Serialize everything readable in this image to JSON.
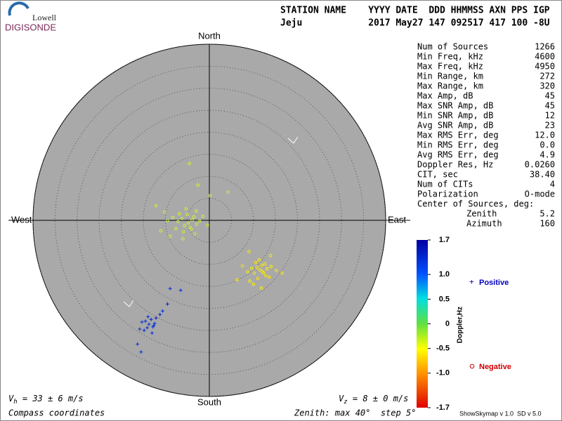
{
  "logo": {
    "top": "Lowell",
    "bottom": "DIGISONDE"
  },
  "header": {
    "row1": "STATION NAME    YYYY DATE  DDD HHMMSS AXN PPS IGP",
    "row2": "Jeju            2017 May27 147 092517 417 100 -8U"
  },
  "stats": {
    "rows": [
      [
        "Num of Sources",
        "1266"
      ],
      [
        "Min Freq, kHz",
        "4600"
      ],
      [
        "Max Freq, kHz",
        "4950"
      ],
      [
        "Min Range, km",
        "272"
      ],
      [
        "Max Range, km",
        "320"
      ],
      [
        "Max Amp, dB",
        "45"
      ],
      [
        "Max SNR Amp, dB",
        "45"
      ],
      [
        "Min SNR Amp, dB",
        "12"
      ],
      [
        "Avg SNR Amp, dB",
        "23"
      ],
      [
        "Max RMS Err, deg",
        "12.0"
      ],
      [
        "Min RMS Err, deg",
        "0.0"
      ],
      [
        "Avg RMS Err, deg",
        "4.9"
      ],
      [
        "Doppler Res, Hz",
        "0.0260"
      ],
      [
        "CIT, sec",
        "38.40"
      ],
      [
        "Num of CITs",
        "4"
      ],
      [
        "Polarization",
        "O-mode"
      ]
    ],
    "center_title": "Center of Sources, deg:",
    "center_rows": [
      [
        "Zenith",
        "5.2"
      ],
      [
        "Azimuth",
        "160"
      ]
    ]
  },
  "skymap": {
    "directions": {
      "north": "North",
      "south": "South",
      "east": "East",
      "west": "West"
    },
    "rlim": [
      0,
      40
    ],
    "rticks": [
      5,
      10,
      15,
      20,
      25,
      30,
      35,
      40
    ],
    "negative": {
      "name": "Negative",
      "x": [
        -4.8,
        -3.9,
        -5.6,
        -6.2,
        -4.1,
        -2.9,
        -5.0,
        -7.1,
        -3.5,
        -4.4,
        -6.8,
        -2.2,
        -8.3,
        -5.9,
        -1.5,
        -9.5,
        -3.0,
        -7.6,
        -0.4,
        -10.2,
        -12.1,
        -6.0,
        0.2,
        4.3,
        -4.5,
        -2.6,
        -8.9,
        -5.3,
        -3.3,
        -11.0,
        11.5,
        10.8,
        12.3,
        11.9,
        10.2,
        13.1,
        12.8,
        9.6,
        11.0,
        14.0,
        10.5,
        12.0,
        8.7,
        13.6,
        11.3,
        15.2,
        9.2,
        12.6,
        7.5,
        10.0,
        16.5,
        6.3,
        9.0,
        11.8,
        13.9
      ],
      "y": [
        -0.6,
        0.1,
        -1.2,
        0.4,
        -2.0,
        -0.9,
        1.3,
        -0.3,
        0.8,
        -1.6,
        1.5,
        -0.2,
        0.6,
        -2.6,
        0.9,
        -0.1,
        2.1,
        -1.9,
        -1.1,
        1.9,
        3.3,
        -4.2,
        5.6,
        6.4,
        12.9,
        8.0,
        -3.6,
        2.6,
        -3.1,
        -2.4,
        -11.3,
        -10.7,
        -11.9,
        -10.2,
        -12.0,
        -11.0,
        -12.6,
        -10.9,
        -13.2,
        -10.5,
        -9.6,
        -11.6,
        -11.7,
        -12.9,
        -9.0,
        -11.4,
        -13.8,
        -9.9,
        -10.4,
        -14.5,
        -12.0,
        -13.5,
        -7.1,
        -15.4,
        -8.0
      ],
      "doppler": [
        -0.2,
        -0.15,
        -0.2,
        -0.1,
        -0.25,
        -0.15,
        -0.2,
        -0.1,
        -0.2,
        -0.15,
        -0.25,
        -0.1,
        -0.2,
        -0.15,
        -0.2,
        -0.1,
        -0.25,
        -0.2,
        -0.15,
        -0.1,
        -0.2,
        -0.15,
        -0.2,
        -0.1,
        -0.2,
        -0.25,
        -0.15,
        -0.2,
        -0.1,
        -0.2,
        -0.55,
        -0.6,
        -0.55,
        -0.6,
        -0.65,
        -0.55,
        -0.6,
        -0.55,
        -0.6,
        -0.55,
        -0.6,
        -0.65,
        -0.55,
        -0.6,
        -0.55,
        -0.6,
        -0.55,
        -0.6,
        -0.65,
        -0.55,
        -0.6,
        -0.55,
        -0.6,
        -0.55,
        -0.6
      ]
    },
    "positive": {
      "name": "Positive",
      "x": [
        -13.7,
        -14.5,
        -12.8,
        -14.1,
        -13.2,
        -15.3,
        -12.4,
        -14.8,
        -13.9,
        -12.1,
        -15.8,
        -13.0,
        -11.2,
        -8.9,
        -9.5,
        -10.6,
        -6.5,
        -16.3,
        -15.5,
        -12.6
      ],
      "y": [
        -23.6,
        -22.9,
        -24.2,
        -24.4,
        -22.5,
        -23.1,
        -23.4,
        -25.0,
        -21.9,
        -22.2,
        -24.7,
        -25.6,
        -21.4,
        -15.5,
        -19.0,
        -20.6,
        -15.9,
        -28.1,
        -29.9,
        -23.9
      ],
      "doppler": [
        1.3,
        1.35,
        1.25,
        1.3,
        1.4,
        1.3,
        1.25,
        1.35,
        1.3,
        1.4,
        1.3,
        1.25,
        1.35,
        1.3,
        1.4,
        1.3,
        1.35,
        1.3,
        1.25,
        1.3
      ]
    }
  },
  "colorbar": {
    "label": "Doppler,Hz",
    "lim": [
      -1.7,
      1.7
    ],
    "ticks": [
      1.7,
      {
        "value": 1,
        "label": "1.0"
      },
      0.5,
      0,
      -0.5,
      {
        "value": -1,
        "label": "-1.0"
      },
      -1.7
    ]
  },
  "footer": {
    "vh_symbol": "V",
    "vh_sub": "h",
    "vh_text": " = 33 ± 6 m/s",
    "vz_symbol": "V",
    "vz_sub": "z",
    "vz_text": " = 8 ± 0 m/s",
    "coords": "Compass coordinates",
    "zenith": "Zenith: max 40°  step 5°",
    "version": "ShowSkymap v 1.0  SD v 5.0"
  }
}
